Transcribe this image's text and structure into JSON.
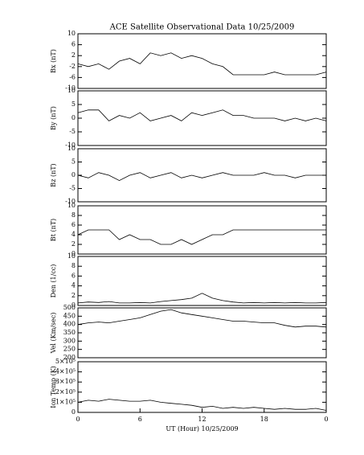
{
  "chart_data": [
    {
      "type": "line",
      "title": "ACE Satellite Observational Data   10/25/2009",
      "y_label": "Bx (nT)",
      "color": "#000000",
      "x": [
        0,
        1,
        2,
        3,
        4,
        5,
        6,
        7,
        8,
        9,
        10,
        11,
        12,
        13,
        14,
        15,
        16,
        17,
        18,
        19,
        20,
        21,
        22,
        23,
        24
      ],
      "values": [
        -1,
        -2,
        -1,
        -3,
        0,
        1,
        -1,
        3,
        2,
        3,
        1,
        2,
        1,
        -1,
        -2,
        -5,
        -5,
        -5,
        -5,
        -4,
        -5,
        -5,
        -5,
        -5,
        -4
      ],
      "xlim": [
        0,
        24
      ],
      "ylim": [
        -10,
        10
      ],
      "yticks": [
        -10,
        -6,
        -2,
        2,
        6,
        10
      ]
    },
    {
      "type": "line",
      "y_label": "By (nT)",
      "color": "#000000",
      "x": [
        0,
        1,
        2,
        3,
        4,
        5,
        6,
        7,
        8,
        9,
        10,
        11,
        12,
        13,
        14,
        15,
        16,
        17,
        18,
        19,
        20,
        21,
        22,
        23,
        24
      ],
      "values": [
        2,
        3,
        3,
        -1,
        1,
        0,
        2,
        -1,
        0,
        1,
        -1,
        2,
        1,
        2,
        3,
        1,
        1,
        0,
        0,
        0,
        -1,
        0,
        -1,
        0,
        -1
      ],
      "xlim": [
        0,
        24
      ],
      "ylim": [
        -10,
        10
      ],
      "yticks": [
        -10,
        -5,
        0,
        5,
        10
      ]
    },
    {
      "type": "line",
      "y_label": "Bz (nT)",
      "color": "#000000",
      "x": [
        0,
        1,
        2,
        3,
        4,
        5,
        6,
        7,
        8,
        9,
        10,
        11,
        12,
        13,
        14,
        15,
        16,
        17,
        18,
        19,
        20,
        21,
        22,
        23,
        24
      ],
      "values": [
        0,
        -1,
        1,
        0,
        -2,
        0,
        1,
        -1,
        0,
        1,
        -1,
        0,
        -1,
        0,
        1,
        0,
        0,
        0,
        1,
        0,
        0,
        -1,
        0,
        0,
        0
      ],
      "xlim": [
        0,
        24
      ],
      "ylim": [
        -10,
        10
      ],
      "yticks": [
        -10,
        -5,
        0,
        5,
        10
      ]
    },
    {
      "type": "line",
      "y_label": "Bt (nT)",
      "color": "#000000",
      "x": [
        0,
        1,
        2,
        3,
        4,
        5,
        6,
        7,
        8,
        9,
        10,
        11,
        12,
        13,
        14,
        15,
        16,
        17,
        18,
        19,
        20,
        21,
        22,
        23,
        24
      ],
      "values": [
        4,
        5,
        5,
        5,
        3,
        4,
        3,
        3,
        2,
        2,
        3,
        2,
        3,
        4,
        4,
        5,
        5,
        5,
        5,
        5,
        5,
        5,
        5,
        5,
        5
      ],
      "xlim": [
        0,
        24
      ],
      "ylim": [
        0,
        10
      ],
      "yticks": [
        0,
        2,
        4,
        6,
        8,
        10
      ]
    },
    {
      "type": "line",
      "y_label": "Den (1/cc)",
      "color": "#000000",
      "x": [
        0,
        1,
        2,
        3,
        4,
        5,
        6,
        7,
        8,
        9,
        10,
        11,
        12,
        13,
        14,
        15,
        16,
        17,
        18,
        19,
        20,
        21,
        22,
        23,
        24
      ],
      "values": [
        0.5,
        0.7,
        0.6,
        0.8,
        0.5,
        0.5,
        0.6,
        0.5,
        0.8,
        1,
        1.2,
        1.5,
        2.5,
        1.5,
        1,
        0.7,
        0.5,
        0.6,
        0.5,
        0.6,
        0.5,
        0.6,
        0.5,
        0.5,
        0.6
      ],
      "xlim": [
        0,
        24
      ],
      "ylim": [
        0,
        10
      ],
      "yticks": [
        0,
        2,
        4,
        6,
        8,
        10
      ]
    },
    {
      "type": "line",
      "y_label": "Vel (Km/sec)",
      "color": "#000000",
      "x": [
        0,
        1,
        2,
        3,
        4,
        5,
        6,
        7,
        8,
        9,
        10,
        11,
        12,
        13,
        14,
        15,
        16,
        17,
        18,
        19,
        20,
        21,
        22,
        23,
        24
      ],
      "values": [
        400,
        410,
        415,
        410,
        420,
        430,
        440,
        460,
        480,
        490,
        470,
        460,
        450,
        440,
        430,
        420,
        420,
        415,
        410,
        410,
        395,
        385,
        390,
        390,
        385
      ],
      "xlim": [
        0,
        24
      ],
      "ylim": [
        200,
        500
      ],
      "yticks": [
        200,
        250,
        300,
        350,
        400,
        450,
        500
      ]
    },
    {
      "type": "line",
      "y_label": "Ion Temp (K)",
      "x_label": "UT (Hour)  10/25/2009",
      "color": "#000000",
      "x": [
        0,
        1,
        2,
        3,
        4,
        5,
        6,
        7,
        8,
        9,
        10,
        11,
        12,
        13,
        14,
        15,
        16,
        17,
        18,
        19,
        20,
        21,
        22,
        23,
        24
      ],
      "values": [
        100000,
        120000,
        110000,
        130000,
        120000,
        110000,
        110000,
        120000,
        100000,
        90000,
        80000,
        70000,
        50000,
        60000,
        40000,
        50000,
        40000,
        50000,
        40000,
        30000,
        40000,
        30000,
        30000,
        40000,
        20000
      ],
      "xlim": [
        0,
        24
      ],
      "ylim": [
        0,
        500000
      ],
      "yticks": [
        0,
        {
          "value": 100000,
          "label": "1×10⁵"
        },
        {
          "value": 200000,
          "label": "2×10⁵"
        },
        {
          "value": 300000,
          "label": "3×10⁵"
        },
        {
          "value": 400000,
          "label": "4×10⁵"
        },
        {
          "value": 500000,
          "label": "5×10⁵"
        }
      ],
      "xticks": [
        0,
        6,
        12,
        18,
        {
          "value": 24,
          "label": "0"
        }
      ]
    }
  ]
}
